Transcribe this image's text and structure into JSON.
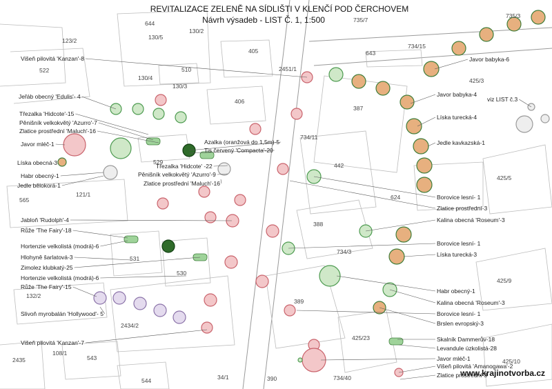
{
  "header": {
    "title": "REVITALIZACE ZELENĚ NA SÍDLIŠTI V KLENČÍ POD ČERCHOVEM",
    "subtitle": "Návrh výsadeb - LIST Č. 1, 1:500"
  },
  "labels": [
    "Višeň pilovitá 'Kanzan'-8",
    "Jeřáb obecný 'Edulis'- 4",
    "Třezalka 'Hidcote'-15",
    "Pěnišník velkokvětý 'Azurro'-7",
    "Zlatice prostřední 'Maluch'-16",
    "Javor mléč-1",
    "Líska obecná-3",
    "Habr obecný-1",
    "Jedle bělokorá-1",
    "Jabloň 'Rudolph'-4",
    "Růže 'The Fairy'-18",
    "Hortenzie velkolistá (modrá)-6",
    "Hlohyně šarlatová-3",
    "Zimolez klubkatý-25",
    "Hortenzie velkolistá (modrá)-6",
    "Růže 'The Fairy'-15",
    "Slivoň myrobalán 'Hollywood'- 5",
    "Višeň pilovitá 'Kanzan'-7",
    "Azalka (oranžová do 1,5m)-5",
    "Tis červený 'Compacta'-20",
    "Třezalka 'Hidcote' -22",
    "Pěnišník velkokvětý 'Azurro'-9",
    "Zlatice prostřední 'Maluch'-16",
    "Javor babyka-6",
    "Javor babyka-4",
    "viz LIST č.3",
    "Líska turecká-4",
    "Jedle kavkazská-1",
    "Borovice lesní- 1",
    "Zlatice prostřední-3",
    "Kalina obecná 'Roseum'-3",
    "Borovice lesní- 1",
    "Líska turecká-3",
    "Habr obecný-1",
    "Kalina obecná 'Roseum'-3",
    "Borovice lesní- 1",
    "Brslen evropský-3",
    "Skalník Dammerův-18",
    "Levandule úzkolistá-28",
    "Javor mléč-1",
    "Višeň pilovitá 'Amanogawa'-2",
    "Zlatice prostřední-3"
  ],
  "parcels": [
    "644",
    "130/5",
    "130/2",
    "735/7",
    "735/3",
    "734/15",
    "405",
    "643",
    "123/2",
    "522",
    "130/4",
    "510",
    "130/3",
    "2451/1",
    "425/3",
    "387",
    "406",
    "734/11",
    "442",
    "529",
    "121/1",
    "565",
    "624",
    "425/5",
    "388",
    "734/3",
    "531",
    "530",
    "132/2",
    "425/9",
    "389",
    "2434/2",
    "425/23",
    "108/1",
    "543",
    "425/10",
    "544",
    "390",
    "734/40",
    "2435",
    "34/1"
  ],
  "footer": "www.krajinotvorba.cz"
}
